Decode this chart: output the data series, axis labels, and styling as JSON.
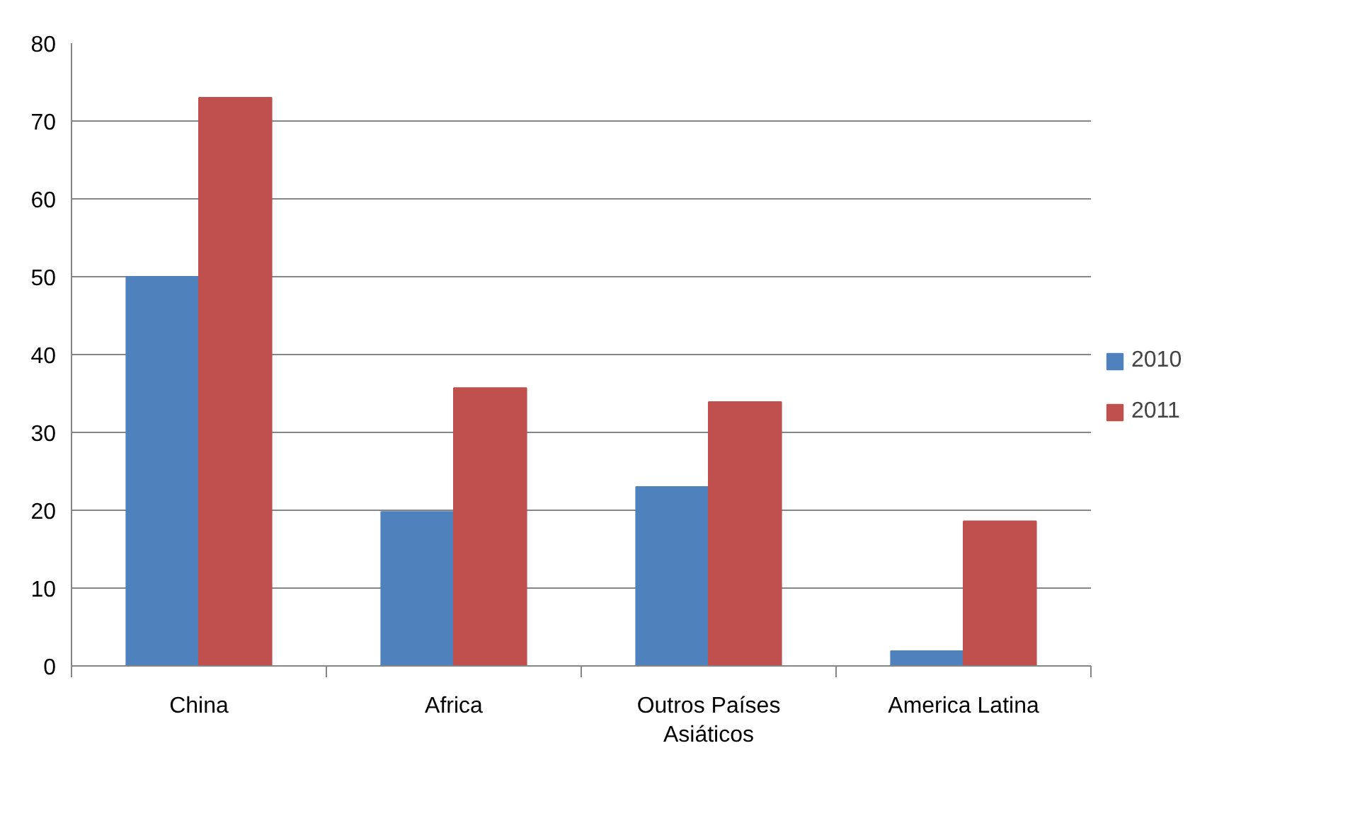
{
  "chart_data": {
    "type": "bar",
    "categories": [
      "China",
      "Africa",
      "Outros Países Asiáticos",
      "America Latina"
    ],
    "series": [
      {
        "name": "2010",
        "color": "#4f81bd",
        "values": [
          50,
          19.8,
          23,
          1.9
        ]
      },
      {
        "name": "2011",
        "color": "#c0504d",
        "values": [
          73,
          35.7,
          33.9,
          18.6
        ]
      }
    ],
    "ylim": [
      0,
      80
    ],
    "yticks": [
      0,
      10,
      20,
      30,
      40,
      50,
      60,
      70,
      80
    ],
    "grid": "y",
    "legend": "right"
  }
}
